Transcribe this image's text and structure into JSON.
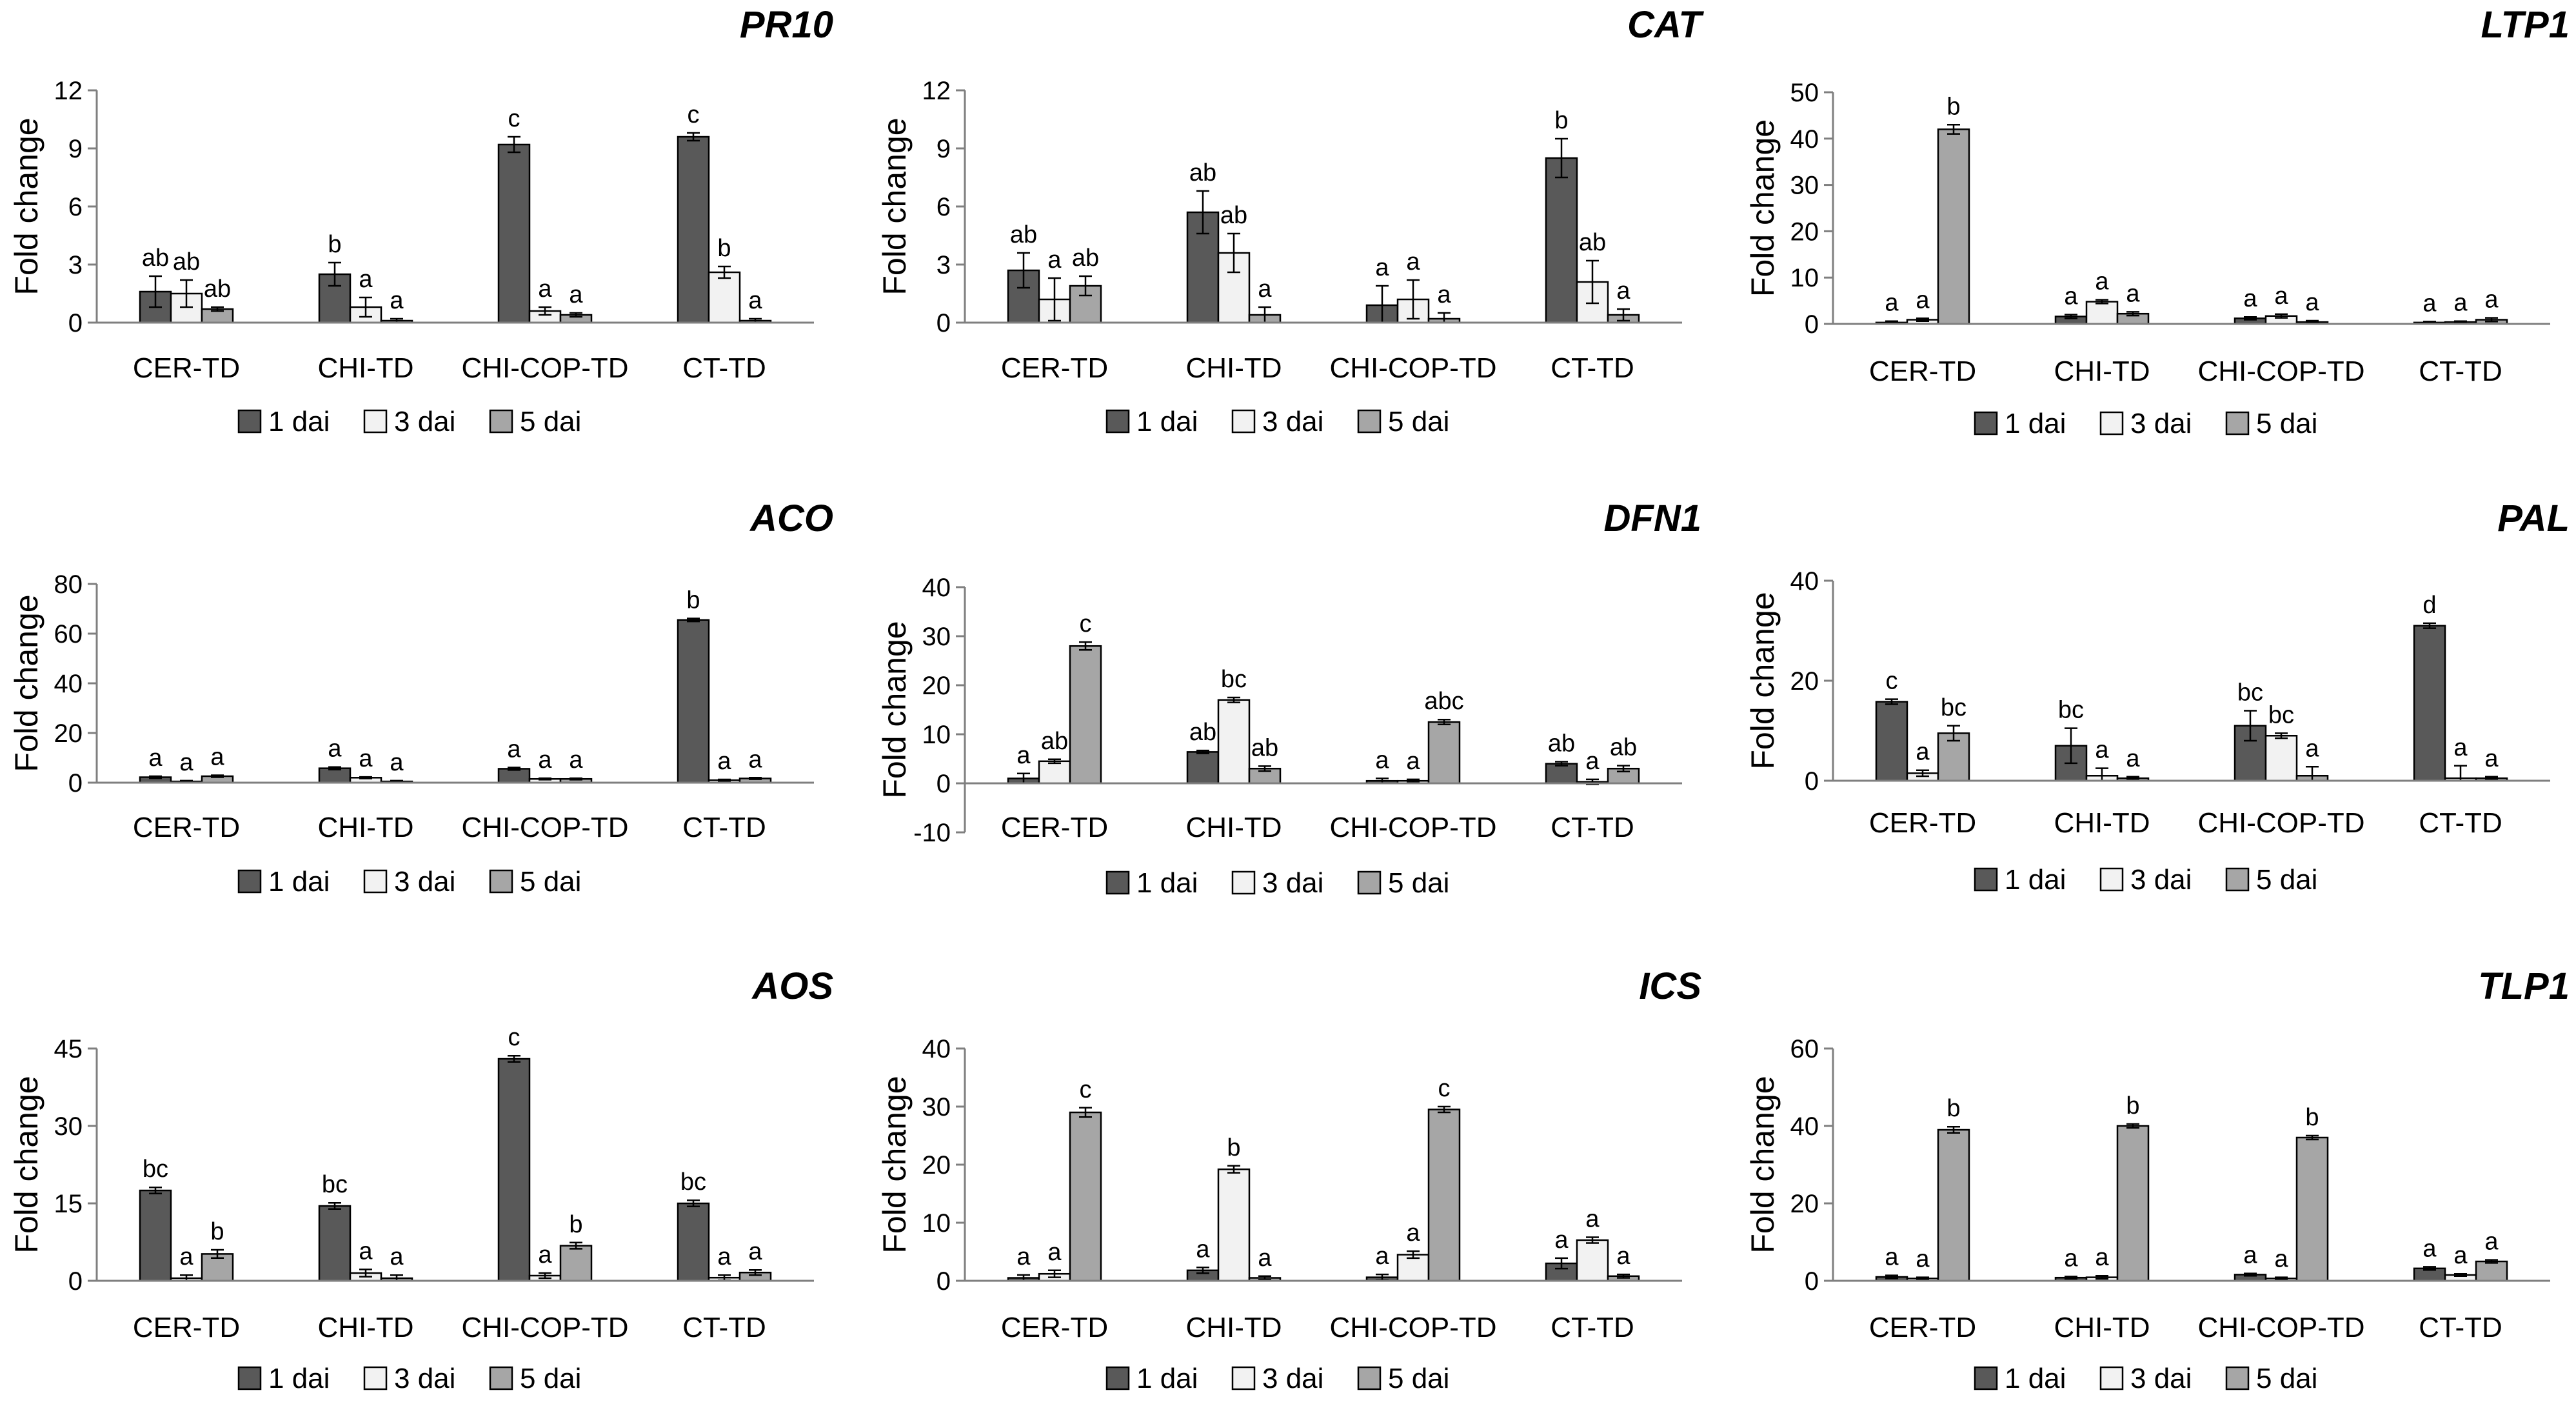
{
  "legend": {
    "series": [
      {
        "name": "1 dai",
        "color": "#595959"
      },
      {
        "name": "3 dai",
        "color": "#f2f2f2"
      },
      {
        "name": "5 dai",
        "color": "#a6a6a6"
      }
    ]
  },
  "chart_data": [
    {
      "type": "bar",
      "title": "PR10",
      "ylabel": "Fold change",
      "categories": [
        "CER-TD",
        "CHI-TD",
        "CHI-COP-TD",
        "CT-TD"
      ],
      "ylim": [
        0,
        12
      ],
      "yticks": [
        0,
        3,
        6,
        9,
        12
      ],
      "series": [
        {
          "name": "1 dai",
          "values": [
            1.6,
            2.5,
            9.2,
            9.6
          ],
          "errors": [
            0.8,
            0.6,
            0.4,
            0.2
          ],
          "labels": [
            "ab",
            "b",
            "c",
            "c"
          ]
        },
        {
          "name": "3 dai",
          "values": [
            1.5,
            0.8,
            0.6,
            2.6
          ],
          "errors": [
            0.7,
            0.5,
            0.2,
            0.3
          ],
          "labels": [
            "ab",
            "a",
            "a",
            "b"
          ]
        },
        {
          "name": "5 dai",
          "values": [
            0.7,
            0.1,
            0.4,
            0.1
          ],
          "errors": [
            0.1,
            0.1,
            0.1,
            0.1
          ],
          "labels": [
            "ab",
            "a",
            "a",
            "a"
          ]
        }
      ]
    },
    {
      "type": "bar",
      "title": "CAT",
      "ylabel": "Fold change",
      "categories": [
        "CER-TD",
        "CHI-TD",
        "CHI-COP-TD",
        "CT-TD"
      ],
      "ylim": [
        0,
        12
      ],
      "yticks": [
        0,
        3,
        6,
        9,
        12
      ],
      "series": [
        {
          "name": "1 dai",
          "values": [
            2.7,
            5.7,
            0.9,
            8.5
          ],
          "errors": [
            0.9,
            1.1,
            1.0,
            1.0
          ],
          "labels": [
            "ab",
            "ab",
            "a",
            "b"
          ]
        },
        {
          "name": "3 dai",
          "values": [
            1.2,
            3.6,
            1.2,
            2.1
          ],
          "errors": [
            1.1,
            1.0,
            1.0,
            1.1
          ],
          "labels": [
            "a",
            "ab",
            "a",
            "ab"
          ]
        },
        {
          "name": "5 dai",
          "values": [
            1.9,
            0.4,
            0.2,
            0.4
          ],
          "errors": [
            0.5,
            0.4,
            0.3,
            0.3
          ],
          "labels": [
            "ab",
            "a",
            "a",
            "a"
          ]
        }
      ]
    },
    {
      "type": "bar",
      "title": "LTP1",
      "ylabel": "Fold change",
      "categories": [
        "CER-TD",
        "CHI-TD",
        "CHI-COP-TD",
        "CT-TD"
      ],
      "ylim": [
        0,
        50
      ],
      "yticks": [
        0,
        10,
        20,
        30,
        40,
        50
      ],
      "series": [
        {
          "name": "1 dai",
          "values": [
            0.3,
            1.6,
            1.2,
            0.3
          ],
          "errors": [
            0.3,
            0.4,
            0.3,
            0.2
          ],
          "labels": [
            "a",
            "a",
            "a",
            "a"
          ]
        },
        {
          "name": "3 dai",
          "values": [
            0.9,
            4.8,
            1.7,
            0.4
          ],
          "errors": [
            0.3,
            0.4,
            0.4,
            0.2
          ],
          "labels": [
            "a",
            "a",
            "a",
            "a"
          ]
        },
        {
          "name": "5 dai",
          "values": [
            42,
            2.2,
            0.4,
            0.9
          ],
          "errors": [
            1.0,
            0.4,
            0.3,
            0.4
          ],
          "labels": [
            "b",
            "a",
            "a",
            "a"
          ]
        }
      ]
    },
    {
      "type": "bar",
      "title": "ACO",
      "ylabel": "Fold change",
      "categories": [
        "CER-TD",
        "CHI-TD",
        "CHI-COP-TD",
        "CT-TD"
      ],
      "ylim": [
        0,
        80
      ],
      "yticks": [
        0,
        20,
        40,
        60,
        80
      ],
      "series": [
        {
          "name": "1 dai",
          "values": [
            2.2,
            5.8,
            5.6,
            65.5
          ],
          "errors": [
            0.4,
            0.5,
            0.5,
            0.6
          ],
          "labels": [
            "a",
            "a",
            "a",
            "b"
          ]
        },
        {
          "name": "3 dai",
          "values": [
            0.5,
            2.0,
            1.5,
            1.0
          ],
          "errors": [
            0.3,
            0.3,
            0.3,
            0.3
          ],
          "labels": [
            "a",
            "a",
            "a",
            "a"
          ]
        },
        {
          "name": "5 dai",
          "values": [
            2.6,
            0.5,
            1.5,
            1.7
          ],
          "errors": [
            0.4,
            0.3,
            0.3,
            0.3
          ],
          "labels": [
            "a",
            "a",
            "a",
            "a"
          ]
        }
      ]
    },
    {
      "type": "bar",
      "title": "DFN1",
      "ylabel": "Fold change",
      "categories": [
        "CER-TD",
        "CHI-TD",
        "CHI-COP-TD",
        "CT-TD"
      ],
      "ylim": [
        -10,
        40
      ],
      "yticks": [
        -10,
        0,
        10,
        20,
        30,
        40
      ],
      "series": [
        {
          "name": "1 dai",
          "values": [
            1.0,
            6.4,
            0.5,
            4.0
          ],
          "errors": [
            1.0,
            0.3,
            0.5,
            0.4
          ],
          "labels": [
            "a",
            "ab",
            "a",
            "ab"
          ]
        },
        {
          "name": "3 dai",
          "values": [
            4.5,
            17.0,
            0.5,
            0.3
          ],
          "errors": [
            0.4,
            0.5,
            0.3,
            0.5
          ],
          "labels": [
            "ab",
            "bc",
            "a",
            "a"
          ]
        },
        {
          "name": "5 dai",
          "values": [
            28.0,
            3.0,
            12.5,
            3.0
          ],
          "errors": [
            0.8,
            0.5,
            0.5,
            0.6
          ],
          "labels": [
            "c",
            "ab",
            "abc",
            "ab"
          ]
        }
      ]
    },
    {
      "type": "bar",
      "title": "PAL",
      "ylabel": "Fold change",
      "categories": [
        "CER-TD",
        "CHI-TD",
        "CHI-COP-TD",
        "CT-TD"
      ],
      "ylim": [
        0,
        40
      ],
      "yticks": [
        0,
        20,
        40
      ],
      "series": [
        {
          "name": "1 dai",
          "values": [
            15.8,
            7.0,
            11.0,
            31.0
          ],
          "errors": [
            0.5,
            3.5,
            3.0,
            0.5
          ],
          "labels": [
            "c",
            "bc",
            "bc",
            "d"
          ]
        },
        {
          "name": "3 dai",
          "values": [
            1.5,
            1.0,
            9.0,
            0.5
          ],
          "errors": [
            0.6,
            1.5,
            0.5,
            2.5
          ],
          "labels": [
            "a",
            "a",
            "bc",
            "a"
          ]
        },
        {
          "name": "5 dai",
          "values": [
            9.5,
            0.5,
            1.0,
            0.5
          ],
          "errors": [
            1.5,
            0.3,
            1.8,
            0.3
          ],
          "labels": [
            "bc",
            "a",
            "a",
            "a"
          ]
        }
      ]
    },
    {
      "type": "bar",
      "title": "AOS",
      "ylabel": "Fold change",
      "categories": [
        "CER-TD",
        "CHI-TD",
        "CHI-COP-TD",
        "CT-TD"
      ],
      "ylim": [
        0,
        45
      ],
      "yticks": [
        0,
        15,
        30,
        45
      ],
      "series": [
        {
          "name": "1 dai",
          "values": [
            17.5,
            14.5,
            43.0,
            15.0
          ],
          "errors": [
            0.6,
            0.6,
            0.6,
            0.6
          ],
          "labels": [
            "bc",
            "bc",
            "c",
            "bc"
          ]
        },
        {
          "name": "3 dai",
          "values": [
            0.5,
            1.5,
            1.0,
            0.6
          ],
          "errors": [
            0.6,
            0.7,
            0.5,
            0.5
          ],
          "labels": [
            "a",
            "a",
            "a",
            "a"
          ]
        },
        {
          "name": "5 dai",
          "values": [
            5.2,
            0.5,
            6.8,
            1.6
          ],
          "errors": [
            0.8,
            0.6,
            0.6,
            0.5
          ],
          "labels": [
            "b",
            "a",
            "b",
            "a"
          ]
        }
      ]
    },
    {
      "type": "bar",
      "title": "ICS",
      "ylabel": "Fold change",
      "categories": [
        "CER-TD",
        "CHI-TD",
        "CHI-COP-TD",
        "CT-TD"
      ],
      "ylim": [
        0,
        40
      ],
      "yticks": [
        0,
        10,
        20,
        30,
        40
      ],
      "series": [
        {
          "name": "1 dai",
          "values": [
            0.5,
            1.8,
            0.6,
            3.0
          ],
          "errors": [
            0.5,
            0.5,
            0.5,
            0.9
          ],
          "labels": [
            "a",
            "a",
            "a",
            "a"
          ]
        },
        {
          "name": "3 dai",
          "values": [
            1.2,
            19.2,
            4.5,
            7.0
          ],
          "errors": [
            0.6,
            0.6,
            0.6,
            0.5
          ],
          "labels": [
            "a",
            "b",
            "a",
            "a"
          ]
        },
        {
          "name": "5 dai",
          "values": [
            29.0,
            0.5,
            29.5,
            0.8
          ],
          "errors": [
            0.8,
            0.3,
            0.5,
            0.3
          ],
          "labels": [
            "c",
            "a",
            "c",
            "a"
          ]
        }
      ]
    },
    {
      "type": "bar",
      "title": "TLP1",
      "ylabel": "Fold change",
      "categories": [
        "CER-TD",
        "CHI-TD",
        "CHI-COP-TD",
        "CT-TD"
      ],
      "ylim": [
        0,
        60
      ],
      "yticks": [
        0,
        20,
        40,
        60
      ],
      "series": [
        {
          "name": "1 dai",
          "values": [
            1.0,
            0.8,
            1.6,
            3.2
          ],
          "errors": [
            0.4,
            0.3,
            0.3,
            0.4
          ],
          "labels": [
            "a",
            "a",
            "a",
            "a"
          ]
        },
        {
          "name": "3 dai",
          "values": [
            0.6,
            0.9,
            0.6,
            1.5
          ],
          "errors": [
            0.3,
            0.4,
            0.3,
            0.3
          ],
          "labels": [
            "a",
            "a",
            "a",
            "a"
          ]
        },
        {
          "name": "5 dai",
          "values": [
            39.0,
            40.0,
            37.0,
            5.0
          ],
          "errors": [
            0.8,
            0.5,
            0.5,
            0.4
          ],
          "labels": [
            "b",
            "b",
            "b",
            "a"
          ]
        }
      ]
    }
  ]
}
